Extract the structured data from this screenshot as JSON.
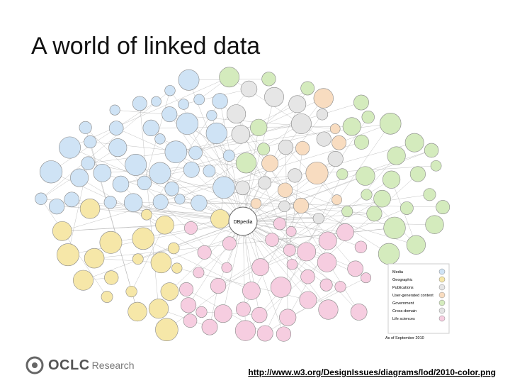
{
  "header": {
    "title": "A world of linked data"
  },
  "figure": {
    "hub": "DBpedia",
    "legend": [
      "Media",
      "Geographic",
      "Publications",
      "User-generated content",
      "Government",
      "Cross-domain",
      "Life sciences"
    ],
    "caption": "As of September 2010"
  },
  "footer": {
    "logo": "OCLC",
    "logo_suffix": "Research",
    "link": "http://www.w3.org/DesignIssues/diagrams/lod/2010-color.png"
  }
}
